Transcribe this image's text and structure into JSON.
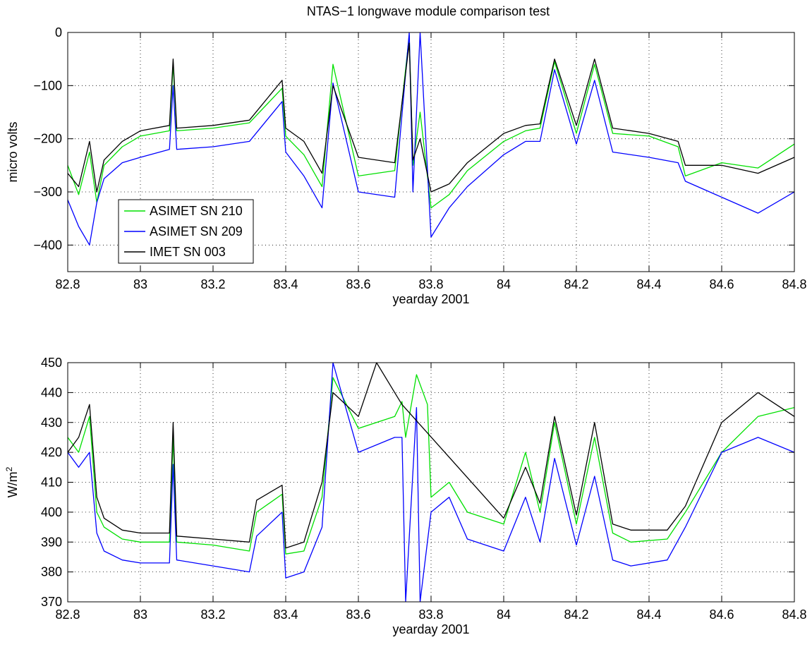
{
  "colors": {
    "green": "#00e000",
    "blue": "#0000ff",
    "black": "#000000",
    "grid": "#000000"
  },
  "chart_data": [
    {
      "type": "line",
      "title": "NTAS−1 longwave module comparison test",
      "xlabel": "yearday 2001",
      "ylabel": "micro volts",
      "xlim": [
        82.8,
        84.8
      ],
      "ylim": [
        -450,
        0
      ],
      "xticks": [
        82.8,
        83,
        83.2,
        83.4,
        83.6,
        83.8,
        84,
        84.2,
        84.4,
        84.6,
        84.8
      ],
      "xtick_labels": [
        "82.8",
        "83",
        "83.2",
        "83.4",
        "83.6",
        "83.8",
        "84",
        "84.2",
        "84.4",
        "84.6",
        "84.8"
      ],
      "yticks": [
        -400,
        -300,
        -200,
        -100,
        0
      ],
      "ytick_labels": [
        "−400",
        "−300",
        "−200",
        "−100",
        "0"
      ],
      "grid": true,
      "legend": {
        "placement": "lower-left",
        "entries": [
          "ASIMET SN 210",
          "ASIMET SN 209",
          "IMET SN 003"
        ]
      },
      "series": [
        {
          "name": "ASIMET SN 210",
          "color": "green",
          "x": [
            82.8,
            82.83,
            82.86,
            82.88,
            82.9,
            82.95,
            83.0,
            83.08,
            83.09,
            83.1,
            83.2,
            83.3,
            83.39,
            83.4,
            83.45,
            83.5,
            83.53,
            83.6,
            83.7,
            83.74,
            83.75,
            83.77,
            83.8,
            83.85,
            83.9,
            84.0,
            84.06,
            84.1,
            84.14,
            84.2,
            84.25,
            84.3,
            84.4,
            84.48,
            84.5,
            84.6,
            84.7,
            84.8
          ],
          "y": [
            -250,
            -305,
            -225,
            -320,
            -250,
            -215,
            -195,
            -185,
            -60,
            -185,
            -180,
            -170,
            -105,
            -195,
            -230,
            -290,
            -60,
            -270,
            -260,
            -5,
            -250,
            -150,
            -330,
            -305,
            -260,
            -205,
            -185,
            -180,
            -55,
            -190,
            -60,
            -190,
            -195,
            -215,
            -270,
            -245,
            -255,
            -210
          ]
        },
        {
          "name": "ASIMET SN 209",
          "color": "blue",
          "x": [
            82.8,
            82.83,
            82.86,
            82.88,
            82.9,
            82.95,
            83.0,
            83.08,
            83.09,
            83.1,
            83.2,
            83.3,
            83.39,
            83.4,
            83.45,
            83.5,
            83.53,
            83.6,
            83.7,
            83.74,
            83.75,
            83.77,
            83.8,
            83.85,
            83.9,
            84.0,
            84.06,
            84.1,
            84.14,
            84.2,
            84.25,
            84.3,
            84.4,
            84.48,
            84.5,
            84.6,
            84.7,
            84.8
          ],
          "y": [
            -315,
            -365,
            -400,
            -320,
            -275,
            -245,
            -235,
            -220,
            -100,
            -220,
            -215,
            -205,
            -130,
            -225,
            -270,
            -330,
            -95,
            -300,
            -310,
            0,
            -300,
            0,
            -385,
            -330,
            -290,
            -230,
            -205,
            -205,
            -70,
            -210,
            -90,
            -225,
            -235,
            -245,
            -280,
            -310,
            -340,
            -300
          ]
        },
        {
          "name": "IMET SN 003",
          "color": "black",
          "x": [
            82.8,
            82.83,
            82.86,
            82.88,
            82.9,
            82.95,
            83.0,
            83.08,
            83.09,
            83.1,
            83.2,
            83.3,
            83.39,
            83.4,
            83.45,
            83.5,
            83.53,
            83.6,
            83.7,
            83.74,
            83.75,
            83.77,
            83.8,
            83.85,
            83.9,
            84.0,
            84.06,
            84.1,
            84.14,
            84.2,
            84.25,
            84.3,
            84.4,
            84.48,
            84.5,
            84.6,
            84.7,
            84.8
          ],
          "y": [
            -265,
            -290,
            -205,
            -300,
            -240,
            -205,
            -185,
            -175,
            -50,
            -180,
            -175,
            -165,
            -90,
            -180,
            -205,
            -265,
            -100,
            -235,
            -245,
            -20,
            -240,
            -200,
            -300,
            -285,
            -245,
            -190,
            -175,
            -172,
            -50,
            -175,
            -50,
            -180,
            -190,
            -205,
            -250,
            -250,
            -265,
            -235
          ]
        }
      ]
    },
    {
      "type": "line",
      "title": "",
      "xlabel": "yearday 2001",
      "ylabel": "W/m",
      "ylabel_sup": "2",
      "xlim": [
        82.8,
        84.8
      ],
      "ylim": [
        370,
        450
      ],
      "xticks": [
        82.8,
        83,
        83.2,
        83.4,
        83.6,
        83.8,
        84,
        84.2,
        84.4,
        84.6,
        84.8
      ],
      "xtick_labels": [
        "82.8",
        "83",
        "83.2",
        "83.4",
        "83.6",
        "83.8",
        "84",
        "84.2",
        "84.4",
        "84.6",
        "84.8"
      ],
      "yticks": [
        370,
        380,
        390,
        400,
        410,
        420,
        430,
        440,
        450
      ],
      "ytick_labels": [
        "370",
        "380",
        "390",
        "400",
        "410",
        "420",
        "430",
        "440",
        "450"
      ],
      "grid": true,
      "series": [
        {
          "name": "ASIMET SN 210",
          "color": "green",
          "x": [
            82.8,
            82.83,
            82.86,
            82.88,
            82.9,
            82.95,
            83.0,
            83.08,
            83.09,
            83.1,
            83.2,
            83.3,
            83.32,
            83.39,
            83.4,
            83.45,
            83.5,
            83.53,
            83.6,
            83.7,
            83.72,
            83.73,
            83.76,
            83.79,
            83.8,
            83.85,
            83.9,
            84.0,
            84.06,
            84.1,
            84.14,
            84.2,
            84.25,
            84.3,
            84.35,
            84.45,
            84.5,
            84.6,
            84.7,
            84.8
          ],
          "y": [
            425,
            420,
            432,
            400,
            395,
            391,
            390,
            390,
            425,
            390,
            389,
            387,
            400,
            406,
            386,
            387,
            405,
            445,
            428,
            432,
            437,
            425,
            446,
            436,
            405,
            410,
            400,
            396,
            420,
            400,
            430,
            396,
            425,
            393,
            390,
            391,
            400,
            420,
            432,
            435
          ]
        },
        {
          "name": "ASIMET SN 209",
          "color": "blue",
          "x": [
            82.8,
            82.83,
            82.86,
            82.88,
            82.9,
            82.95,
            83.0,
            83.08,
            83.09,
            83.1,
            83.2,
            83.3,
            83.32,
            83.39,
            83.4,
            83.45,
            83.5,
            83.53,
            83.6,
            83.7,
            83.72,
            83.73,
            83.76,
            83.77,
            83.8,
            83.85,
            83.9,
            84.0,
            84.06,
            84.1,
            84.14,
            84.2,
            84.25,
            84.3,
            84.35,
            84.45,
            84.5,
            84.6,
            84.7,
            84.8
          ],
          "y": [
            420,
            415,
            420,
            393,
            387,
            384,
            383,
            383,
            416,
            384,
            382,
            380,
            392,
            400,
            378,
            380,
            395,
            450,
            420,
            425,
            425,
            370,
            435,
            370,
            400,
            405,
            391,
            387,
            405,
            390,
            418,
            389,
            412,
            384,
            382,
            384,
            395,
            420,
            425,
            420
          ]
        },
        {
          "name": "IMET SN 003",
          "color": "black",
          "x": [
            82.8,
            82.83,
            82.86,
            82.88,
            82.9,
            82.95,
            83.0,
            83.08,
            83.09,
            83.1,
            83.2,
            83.3,
            83.32,
            83.39,
            83.4,
            83.45,
            83.5,
            83.53,
            83.6,
            83.65,
            83.7,
            83.72,
            84.0,
            84.06,
            84.1,
            84.14,
            84.2,
            84.25,
            84.3,
            84.35,
            84.45,
            84.5,
            84.6,
            84.7,
            84.8
          ],
          "y": [
            420,
            425,
            436,
            405,
            398,
            394,
            393,
            393,
            430,
            392,
            391,
            390,
            404,
            409,
            388,
            390,
            410,
            440,
            432,
            450,
            440,
            436,
            398,
            415,
            403,
            432,
            399,
            430,
            396,
            394,
            394,
            402,
            430,
            440,
            432
          ]
        }
      ]
    }
  ]
}
